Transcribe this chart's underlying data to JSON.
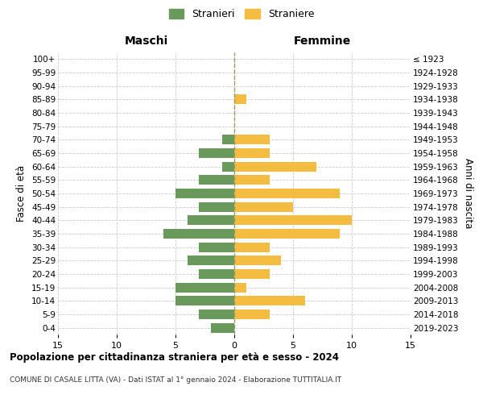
{
  "age_groups": [
    "0-4",
    "5-9",
    "10-14",
    "15-19",
    "20-24",
    "25-29",
    "30-34",
    "35-39",
    "40-44",
    "45-49",
    "50-54",
    "55-59",
    "60-64",
    "65-69",
    "70-74",
    "75-79",
    "80-84",
    "85-89",
    "90-94",
    "95-99",
    "100+"
  ],
  "birth_years": [
    "2019-2023",
    "2014-2018",
    "2009-2013",
    "2004-2008",
    "1999-2003",
    "1994-1998",
    "1989-1993",
    "1984-1988",
    "1979-1983",
    "1974-1978",
    "1969-1973",
    "1964-1968",
    "1959-1963",
    "1954-1958",
    "1949-1953",
    "1944-1948",
    "1939-1943",
    "1934-1938",
    "1929-1933",
    "1924-1928",
    "≤ 1923"
  ],
  "males": [
    2,
    3,
    5,
    5,
    3,
    4,
    3,
    6,
    4,
    3,
    5,
    3,
    1,
    3,
    1,
    0,
    0,
    0,
    0,
    0,
    0
  ],
  "females": [
    0,
    3,
    6,
    1,
    3,
    4,
    3,
    9,
    10,
    5,
    9,
    3,
    7,
    3,
    3,
    0,
    0,
    1,
    0,
    0,
    0
  ],
  "male_color": "#6a9a5b",
  "female_color": "#f5bc42",
  "background_color": "#ffffff",
  "grid_color": "#cccccc",
  "title": "Popolazione per cittadinanza straniera per età e sesso - 2024",
  "subtitle": "COMUNE DI CASALE LITTA (VA) - Dati ISTAT al 1° gennaio 2024 - Elaborazione TUTTITALIA.IT",
  "xlabel_left": "Maschi",
  "xlabel_right": "Femmine",
  "ylabel_left": "Fasce di età",
  "ylabel_right": "Anni di nascita",
  "legend_male": "Stranieri",
  "legend_female": "Straniere",
  "xlim": 15
}
